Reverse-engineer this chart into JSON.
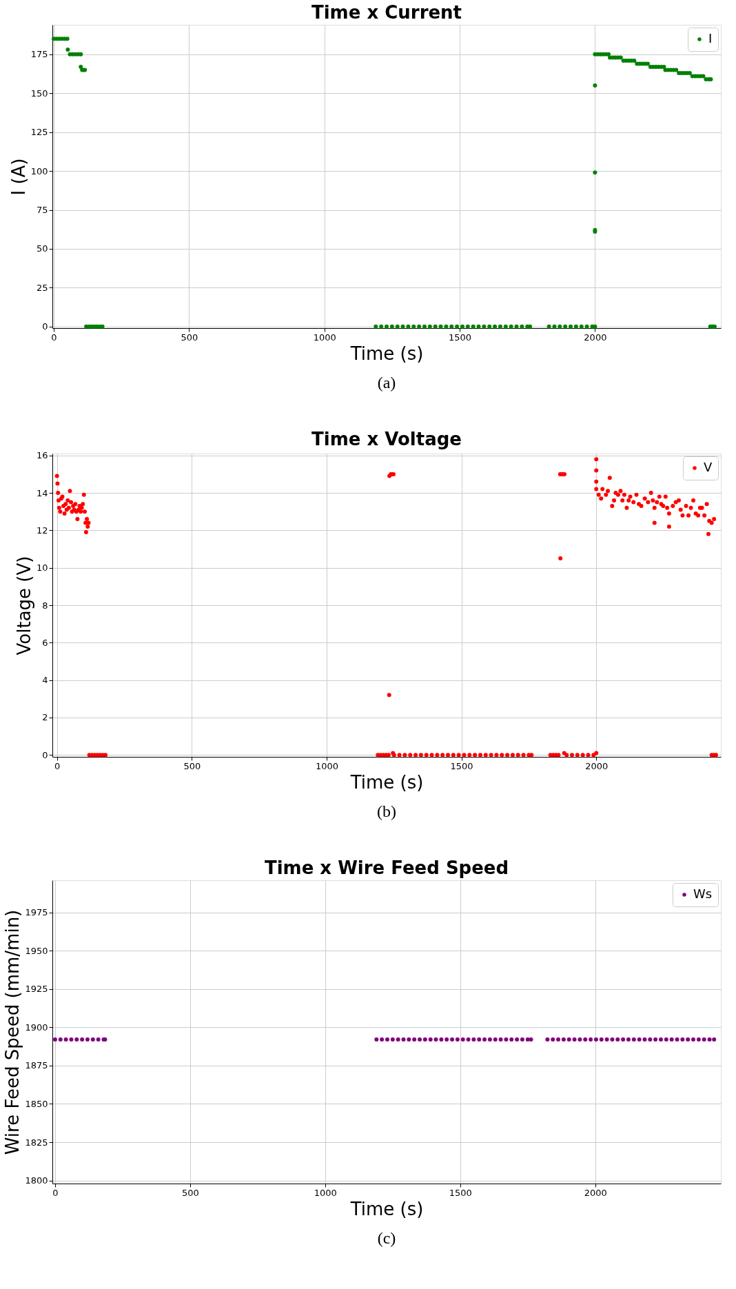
{
  "chart_data": [
    {
      "type": "scatter",
      "title": "Time x Current",
      "xlabel": "Time (s)",
      "ylabel": "I (A)",
      "x": [
        0,
        10,
        20,
        30,
        40,
        50,
        52,
        60,
        70,
        80,
        90,
        100,
        100,
        105,
        110,
        115,
        120,
        130,
        140,
        150,
        160,
        170,
        180,
        1190,
        1210,
        1230,
        1250,
        1270,
        1290,
        1310,
        1330,
        1350,
        1370,
        1390,
        1410,
        1430,
        1450,
        1470,
        1490,
        1510,
        1530,
        1550,
        1570,
        1590,
        1610,
        1630,
        1650,
        1670,
        1690,
        1710,
        1730,
        1750,
        1760,
        1830,
        1850,
        1870,
        1890,
        1910,
        1930,
        1950,
        1970,
        1990,
        2000,
        2000,
        2000,
        2000,
        2000,
        2000,
        2010,
        2020,
        2030,
        2040,
        2050,
        2055,
        2065,
        2075,
        2085,
        2095,
        2105,
        2115,
        2125,
        2135,
        2145,
        2155,
        2165,
        2175,
        2185,
        2195,
        2205,
        2215,
        2225,
        2235,
        2245,
        2255,
        2260,
        2270,
        2280,
        2290,
        2300,
        2310,
        2320,
        2330,
        2340,
        2350,
        2360,
        2370,
        2380,
        2390,
        2400,
        2410,
        2420,
        2428,
        2426,
        2434,
        2442
      ],
      "series": [
        {
          "name": "I",
          "color": "#008000",
          "values": [
            185,
            185,
            185,
            185,
            185,
            185,
            178,
            175,
            175,
            175,
            175,
            175,
            167,
            165,
            165,
            165,
            0,
            0,
            0,
            0,
            0,
            0,
            0,
            0,
            0,
            0,
            0,
            0,
            0,
            0,
            0,
            0,
            0,
            0,
            0,
            0,
            0,
            0,
            0,
            0,
            0,
            0,
            0,
            0,
            0,
            0,
            0,
            0,
            0,
            0,
            0,
            0,
            0,
            0,
            0,
            0,
            0,
            0,
            0,
            0,
            0,
            0,
            0,
            155,
            99,
            62,
            61,
            175,
            175,
            175,
            175,
            175,
            175,
            173,
            173,
            173,
            173,
            173,
            171,
            171,
            171,
            171,
            171,
            169,
            169,
            169,
            169,
            169,
            167,
            167,
            167,
            167,
            167,
            167,
            165,
            165,
            165,
            165,
            165,
            163,
            163,
            163,
            163,
            163,
            161,
            161,
            161,
            161,
            161,
            159,
            159,
            159,
            0,
            0,
            0
          ]
        }
      ],
      "xlim": [
        -5,
        2465
      ],
      "ylim": [
        -1,
        194
      ],
      "xticks": [
        0,
        500,
        1000,
        1500,
        2000
      ],
      "yticks": [
        0,
        25,
        50,
        75,
        100,
        125,
        150,
        175
      ],
      "grid": true,
      "legend": "top right",
      "marker": "circle",
      "annotations": [
        "(a)"
      ]
    },
    {
      "type": "scatter",
      "title": "Time x Voltage",
      "xlabel": "Time (s)",
      "ylabel": "Voltage (V)",
      "x": [
        0,
        2,
        4,
        6,
        8,
        12,
        16,
        20,
        24,
        28,
        32,
        36,
        40,
        44,
        48,
        52,
        56,
        60,
        64,
        68,
        72,
        76,
        80,
        84,
        88,
        92,
        96,
        100,
        103,
        106,
        108,
        111,
        114,
        117,
        120,
        130,
        140,
        150,
        160,
        170,
        180,
        1190,
        1200,
        1210,
        1220,
        1230,
        1232,
        1233,
        1238,
        1243,
        1248,
        1246,
        1250,
        1270,
        1290,
        1310,
        1330,
        1350,
        1370,
        1390,
        1410,
        1430,
        1450,
        1470,
        1490,
        1510,
        1530,
        1550,
        1570,
        1590,
        1610,
        1630,
        1650,
        1670,
        1690,
        1710,
        1730,
        1750,
        1760,
        1830,
        1840,
        1850,
        1860,
        1867,
        1866,
        1871,
        1876,
        1882,
        1881,
        1890,
        1910,
        1930,
        1950,
        1970,
        1990,
        2000,
        2000,
        2000,
        2000,
        2000,
        2009,
        2018,
        2023,
        2036,
        2043,
        2050,
        2059,
        2066,
        2072,
        2081,
        2090,
        2097,
        2104,
        2113,
        2120,
        2126,
        2138,
        2149,
        2158,
        2167,
        2180,
        2192,
        2203,
        2210,
        2216,
        2216,
        2225,
        2234,
        2241,
        2248,
        2257,
        2263,
        2270,
        2270,
        2284,
        2295,
        2306,
        2313,
        2320,
        2333,
        2342,
        2351,
        2360,
        2369,
        2378,
        2385,
        2392,
        2401,
        2410,
        2416,
        2419,
        2428,
        2437,
        2428,
        2436,
        2444
      ],
      "series": [
        {
          "name": "V",
          "color": "#ff0000",
          "values": [
            14.9,
            14.5,
            14.0,
            13.6,
            13.2,
            13.0,
            13.7,
            13.8,
            13.3,
            12.9,
            13.4,
            13.1,
            13.6,
            13.2,
            14.1,
            13.5,
            13.0,
            13.3,
            13.1,
            13.4,
            13.0,
            12.6,
            13.1,
            13.3,
            13.0,
            13.2,
            13.4,
            13.9,
            13.0,
            12.4,
            11.9,
            12.6,
            12.2,
            12.4,
            0,
            0,
            0,
            0,
            0,
            0,
            0,
            0,
            0,
            0,
            0,
            0,
            3.2,
            14.9,
            15,
            15,
            15,
            0.1,
            0,
            0,
            0,
            0,
            0,
            0,
            0,
            0,
            0,
            0,
            0,
            0,
            0,
            0,
            0,
            0,
            0,
            0,
            0,
            0,
            0,
            0,
            0,
            0,
            0,
            0,
            0,
            0,
            0,
            0,
            0,
            10.5,
            15,
            15,
            15,
            15,
            0.1,
            0,
            0,
            0,
            0,
            0,
            0,
            0.1,
            15.8,
            15.2,
            14.6,
            14.2,
            13.9,
            13.7,
            14.2,
            13.9,
            14.1,
            14.8,
            13.3,
            13.6,
            14.0,
            13.9,
            14.1,
            13.6,
            13.9,
            13.2,
            13.6,
            13.8,
            13.5,
            13.9,
            13.4,
            13.3,
            13.7,
            13.5,
            14.0,
            13.6,
            13.2,
            12.4,
            13.5,
            13.8,
            13.4,
            13.3,
            13.8,
            13.2,
            12.9,
            12.2,
            13.3,
            13.5,
            13.6,
            13.1,
            12.8,
            13.3,
            12.8,
            13.2,
            13.6,
            12.9,
            12.8,
            13.2,
            13.2,
            12.8,
            13.4,
            11.8,
            12.5,
            12.4,
            12.6,
            0,
            0,
            0
          ]
        }
      ],
      "xlim": [
        -17,
        2462
      ],
      "ylim": [
        -0.1,
        16.1
      ],
      "xticks": [
        0,
        500,
        1000,
        1500,
        2000
      ],
      "yticks": [
        0,
        2,
        4,
        6,
        8,
        10,
        12,
        14,
        16
      ],
      "grid": true,
      "legend": "top right",
      "marker": "circle",
      "annotations": [
        "(b)"
      ]
    },
    {
      "type": "scatter",
      "title": "Time x Wire Feed Speed",
      "xlabel": "Time (s)",
      "ylabel": "Wire Feed Speed (mm/min)",
      "x": [
        0,
        20,
        40,
        60,
        80,
        100,
        120,
        140,
        160,
        180,
        185,
        1190,
        1210,
        1230,
        1250,
        1270,
        1290,
        1310,
        1330,
        1350,
        1370,
        1390,
        1410,
        1430,
        1450,
        1470,
        1490,
        1510,
        1530,
        1550,
        1570,
        1590,
        1610,
        1630,
        1650,
        1670,
        1690,
        1710,
        1730,
        1750,
        1762,
        1823,
        1843,
        1863,
        1883,
        1903,
        1923,
        1943,
        1963,
        1983,
        2003,
        2023,
        2043,
        2063,
        2083,
        2103,
        2123,
        2143,
        2163,
        2183,
        2203,
        2223,
        2243,
        2263,
        2283,
        2303,
        2323,
        2343,
        2363,
        2383,
        2403,
        2423,
        2440
      ],
      "series": [
        {
          "name": "Ws",
          "color": "#800080",
          "values": [
            1892,
            1892,
            1892,
            1892,
            1892,
            1892,
            1892,
            1892,
            1892,
            1892,
            1892,
            1892,
            1892,
            1892,
            1892,
            1892,
            1892,
            1892,
            1892,
            1892,
            1892,
            1892,
            1892,
            1892,
            1892,
            1892,
            1892,
            1892,
            1892,
            1892,
            1892,
            1892,
            1892,
            1892,
            1892,
            1892,
            1892,
            1892,
            1892,
            1892,
            1892,
            1892,
            1892,
            1892,
            1892,
            1892,
            1892,
            1892,
            1892,
            1892,
            1892,
            1892,
            1892,
            1892,
            1892,
            1892,
            1892,
            1892,
            1892,
            1892,
            1892,
            1892,
            1892,
            1892,
            1892,
            1892,
            1892,
            1892,
            1892,
            1892,
            1892,
            1892,
            1892
          ]
        }
      ],
      "xlim": [
        -10,
        2465
      ],
      "ylim": [
        1798,
        1996
      ],
      "xticks": [
        0,
        500,
        1000,
        1500,
        2000
      ],
      "yticks": [
        1800,
        1825,
        1850,
        1875,
        1900,
        1925,
        1950,
        1975
      ],
      "grid": true,
      "legend": "top right",
      "marker": "circle",
      "annotations": [
        "(c)"
      ]
    }
  ]
}
